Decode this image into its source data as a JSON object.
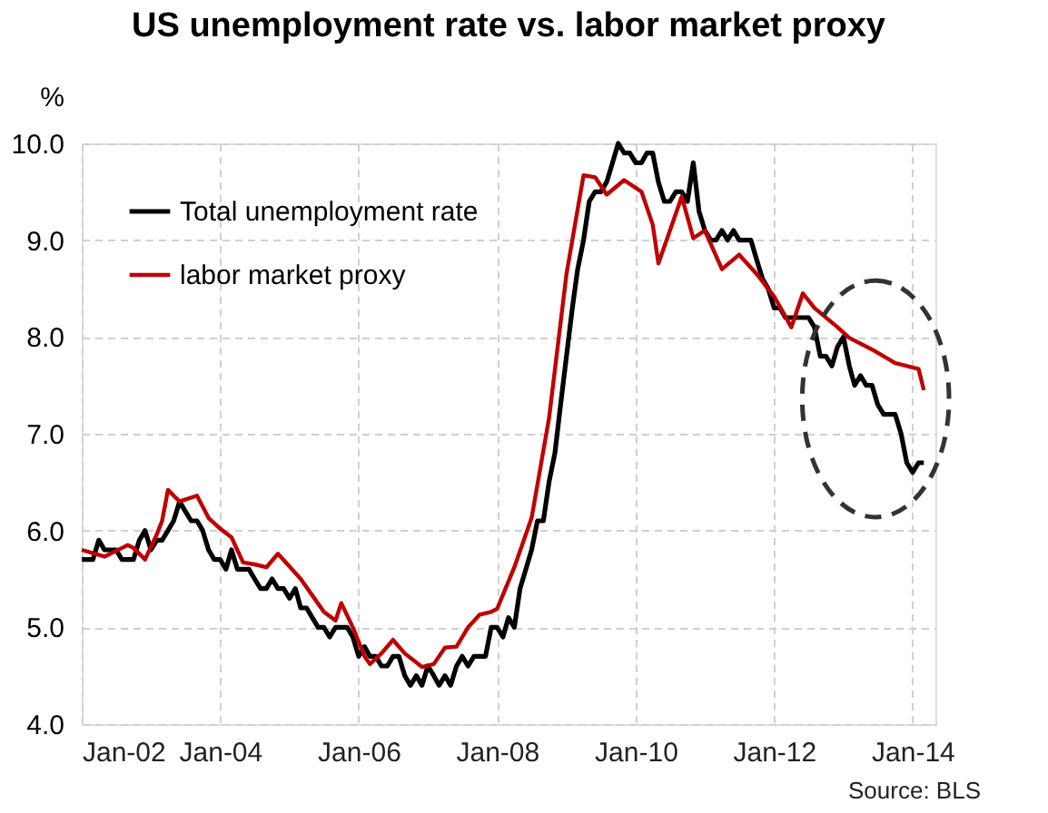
{
  "chart_data": {
    "type": "line",
    "title": "US unemployment rate vs. labor market proxy",
    "ylabel": "%",
    "ylim": [
      4,
      10
    ],
    "yticks": [
      {
        "value": 4,
        "label": "4.0"
      },
      {
        "value": 5,
        "label": "5.0"
      },
      {
        "value": 6,
        "label": "6.0"
      },
      {
        "value": 7,
        "label": "7.0"
      },
      {
        "value": 8,
        "label": "8.0"
      },
      {
        "value": 9,
        "label": "9.0"
      },
      {
        "value": 10,
        "label": "10.0"
      }
    ],
    "xlim": [
      "2002-01",
      "2014-05"
    ],
    "xticks": [
      {
        "value": "2002-01",
        "label": "Jan-02"
      },
      {
        "value": "2004-01",
        "label": "Jan-04"
      },
      {
        "value": "2006-01",
        "label": "Jan-06"
      },
      {
        "value": "2008-01",
        "label": "Jan-08"
      },
      {
        "value": "2010-01",
        "label": "Jan-10"
      },
      {
        "value": "2012-01",
        "label": "Jan-12"
      },
      {
        "value": "2014-01",
        "label": "Jan-14"
      }
    ],
    "grid": true,
    "legend": "top left",
    "line_style": "solid",
    "marker": "none",
    "annotations": [
      "Source: BLS"
    ],
    "series": [
      {
        "name": "Total unemployment rate",
        "color": "#000000",
        "x": [
          "2002-01",
          "2002-02",
          "2002-03",
          "2002-04",
          "2002-05",
          "2002-06",
          "2002-07",
          "2002-08",
          "2002-09",
          "2002-10",
          "2002-11",
          "2002-12",
          "2003-01",
          "2003-02",
          "2003-03",
          "2003-04",
          "2003-05",
          "2003-06",
          "2003-07",
          "2003-08",
          "2003-09",
          "2003-10",
          "2003-11",
          "2003-12",
          "2004-01",
          "2004-02",
          "2004-03",
          "2004-04",
          "2004-05",
          "2004-06",
          "2004-07",
          "2004-08",
          "2004-09",
          "2004-10",
          "2004-11",
          "2004-12",
          "2005-01",
          "2005-02",
          "2005-03",
          "2005-04",
          "2005-05",
          "2005-06",
          "2005-07",
          "2005-08",
          "2005-09",
          "2005-10",
          "2005-11",
          "2005-12",
          "2006-01",
          "2006-02",
          "2006-03",
          "2006-04",
          "2006-05",
          "2006-06",
          "2006-07",
          "2006-08",
          "2006-09",
          "2006-10",
          "2006-11",
          "2006-12",
          "2007-01",
          "2007-02",
          "2007-03",
          "2007-04",
          "2007-05",
          "2007-06",
          "2007-07",
          "2007-08",
          "2007-09",
          "2007-10",
          "2007-11",
          "2007-12",
          "2008-01",
          "2008-02",
          "2008-03",
          "2008-04",
          "2008-05",
          "2008-06",
          "2008-07",
          "2008-08",
          "2008-09",
          "2008-10",
          "2008-11",
          "2008-12",
          "2009-01",
          "2009-02",
          "2009-03",
          "2009-04",
          "2009-05",
          "2009-06",
          "2009-07",
          "2009-08",
          "2009-09",
          "2009-10",
          "2009-11",
          "2009-12",
          "2010-01",
          "2010-02",
          "2010-03",
          "2010-04",
          "2010-05",
          "2010-06",
          "2010-07",
          "2010-08",
          "2010-09",
          "2010-10",
          "2010-11",
          "2010-12",
          "2011-01",
          "2011-02",
          "2011-03",
          "2011-04",
          "2011-05",
          "2011-06",
          "2011-07",
          "2011-08",
          "2011-09",
          "2011-10",
          "2011-11",
          "2011-12",
          "2012-01",
          "2012-02",
          "2012-03",
          "2012-04",
          "2012-05",
          "2012-06",
          "2012-07",
          "2012-08",
          "2012-09",
          "2012-10",
          "2012-11",
          "2012-12",
          "2013-01",
          "2013-02",
          "2013-03",
          "2013-04",
          "2013-05",
          "2013-06",
          "2013-07",
          "2013-08",
          "2013-09",
          "2013-10",
          "2013-11",
          "2013-12",
          "2014-01",
          "2014-02",
          "2014-03"
        ],
        "values": [
          5.7,
          5.7,
          5.7,
          5.9,
          5.8,
          5.8,
          5.8,
          5.7,
          5.7,
          5.7,
          5.9,
          6.0,
          5.8,
          5.9,
          5.9,
          6.0,
          6.1,
          6.3,
          6.2,
          6.1,
          6.1,
          6.0,
          5.8,
          5.7,
          5.7,
          5.6,
          5.8,
          5.6,
          5.6,
          5.6,
          5.5,
          5.4,
          5.4,
          5.5,
          5.4,
          5.4,
          5.3,
          5.4,
          5.2,
          5.2,
          5.1,
          5.0,
          5.0,
          4.9,
          5.0,
          5.0,
          5.0,
          4.9,
          4.7,
          4.8,
          4.7,
          4.7,
          4.6,
          4.6,
          4.7,
          4.7,
          4.5,
          4.4,
          4.5,
          4.4,
          4.6,
          4.5,
          4.4,
          4.5,
          4.4,
          4.6,
          4.7,
          4.6,
          4.7,
          4.7,
          4.7,
          5.0,
          5.0,
          4.9,
          5.1,
          5.0,
          5.4,
          5.6,
          5.8,
          6.1,
          6.1,
          6.5,
          6.8,
          7.3,
          7.8,
          8.3,
          8.7,
          9.0,
          9.4,
          9.5,
          9.5,
          9.6,
          9.8,
          10.0,
          9.9,
          9.9,
          9.8,
          9.8,
          9.9,
          9.9,
          9.6,
          9.4,
          9.4,
          9.5,
          9.5,
          9.4,
          9.8,
          9.3,
          9.1,
          9.0,
          9.0,
          9.1,
          9.0,
          9.1,
          9.0,
          9.0,
          9.0,
          8.8,
          8.6,
          8.5,
          8.3,
          8.3,
          8.2,
          8.2,
          8.2,
          8.2,
          8.2,
          8.1,
          7.8,
          7.8,
          7.7,
          7.9,
          8.0,
          7.7,
          7.5,
          7.6,
          7.5,
          7.5,
          7.3,
          7.2,
          7.2,
          7.2,
          7.0,
          6.7,
          6.6,
          6.7,
          6.7
        ]
      },
      {
        "name": "labor market proxy",
        "color": "#c00000",
        "x": [
          "2002-01",
          "2002-05",
          "2002-08",
          "2002-09",
          "2002-10",
          "2002-12",
          "2003-02",
          "2003-03",
          "2003-04",
          "2003-05",
          "2003-06",
          "2003-09",
          "2003-11",
          "2004-01",
          "2004-03",
          "2004-05",
          "2004-07",
          "2004-09",
          "2004-11",
          "2005-03",
          "2005-05",
          "2005-07",
          "2005-09",
          "2005-10",
          "2005-12",
          "2006-02",
          "2006-03",
          "2006-05",
          "2006-07",
          "2006-09",
          "2006-12",
          "2007-02",
          "2007-04",
          "2007-06",
          "2007-08",
          "2007-10",
          "2007-12",
          "2008-01",
          "2008-04",
          "2008-07",
          "2008-10",
          "2009-01",
          "2009-04",
          "2009-06",
          "2009-08",
          "2009-11",
          "2010-02",
          "2010-04",
          "2010-05",
          "2010-07",
          "2010-09",
          "2010-11",
          "2011-01",
          "2011-04",
          "2011-07",
          "2011-10",
          "2012-01",
          "2012-04",
          "2012-06",
          "2012-08",
          "2012-12",
          "2013-02",
          "2013-06",
          "2013-10",
          "2014-02",
          "2014-03"
        ],
        "values": [
          5.8,
          5.73,
          5.82,
          5.85,
          5.82,
          5.7,
          5.96,
          6.1,
          6.42,
          6.36,
          6.3,
          6.36,
          6.13,
          6.02,
          5.93,
          5.67,
          5.65,
          5.62,
          5.76,
          5.5,
          5.33,
          5.16,
          5.07,
          5.25,
          5.0,
          4.7,
          4.62,
          4.73,
          4.87,
          4.73,
          4.59,
          4.62,
          4.79,
          4.8,
          5.0,
          5.13,
          5.16,
          5.19,
          5.62,
          6.13,
          7.16,
          8.65,
          9.67,
          9.65,
          9.47,
          9.62,
          9.5,
          9.16,
          8.76,
          9.1,
          9.45,
          9.02,
          9.1,
          8.7,
          8.85,
          8.65,
          8.42,
          8.1,
          8.45,
          8.3,
          8.1,
          7.99,
          7.87,
          7.73,
          7.67,
          7.45
        ]
      }
    ]
  }
}
